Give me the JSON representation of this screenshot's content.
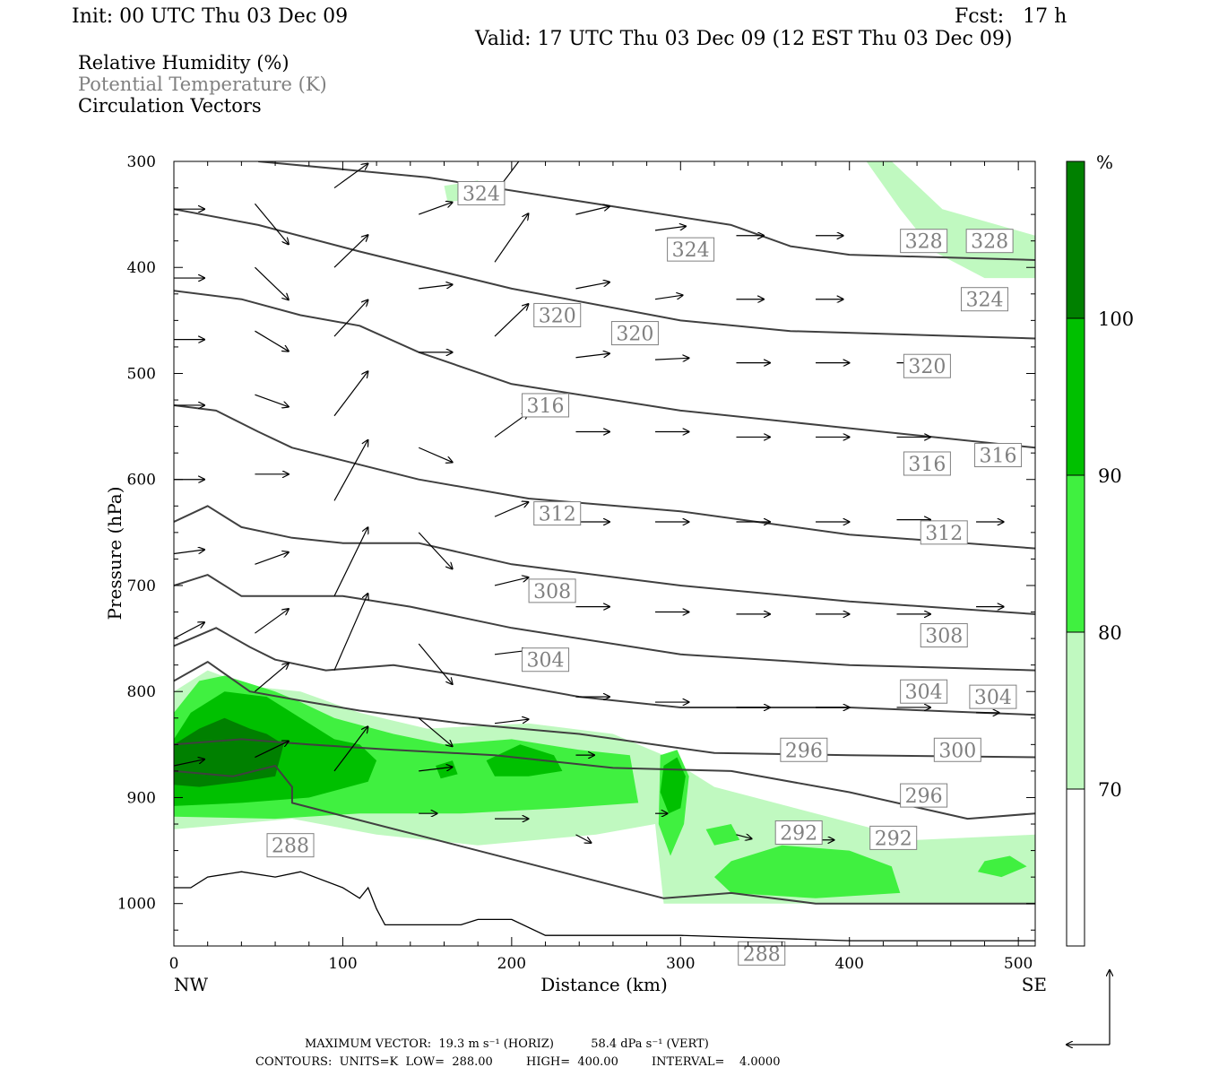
{
  "header": {
    "init": "Init: 00 UTC Thu 03 Dec 09",
    "fcst": "Fcst:   17 h",
    "valid": "Valid: 17 UTC Thu 03 Dec 09 (12 EST Thu 03 Dec 09)"
  },
  "titles": {
    "rh": "Relative Humidity (%)",
    "theta": "Potential Temperature (K)",
    "vectors": "Circulation Vectors"
  },
  "footer": {
    "max_vector": "MAXIMUM VECTOR:  19.3 m s⁻¹ (HORIZ)          58.4 dPa s⁻¹ (VERT)",
    "contours": "CONTOURS:  UNITS=K  LOW=  288.00         HIGH=  400.00         INTERVAL=    4.0000"
  },
  "colors": {
    "rh70": "#c0f9c0",
    "rh80": "#40f040",
    "rh90": "#00c000",
    "rh100": "#008000",
    "contour": "#404040",
    "theta_label": "#808080"
  },
  "chart_data": {
    "type": "cross-section",
    "xlabel": "Distance (km)",
    "ylabel": "Pressure (hPa)",
    "xlim": [
      0,
      510
    ],
    "ylim": [
      1040,
      300
    ],
    "x_ticks": [
      0,
      100,
      200,
      300,
      400,
      500
    ],
    "y_ticks": [
      300,
      400,
      500,
      600,
      700,
      800,
      900,
      1000
    ],
    "x_end_labels": {
      "left": "NW",
      "right": "SE"
    },
    "colorbar": {
      "unit": "%",
      "levels": [
        70,
        80,
        90,
        100
      ],
      "colors": [
        "#ffffff",
        "#c0f9c0",
        "#40f040",
        "#00c000",
        "#008000"
      ]
    },
    "theta_contours": [
      {
        "value": 324,
        "points": [
          [
            50,
            300
          ],
          [
            150,
            315
          ],
          [
            250,
            340
          ],
          [
            330,
            360
          ],
          [
            365,
            380
          ],
          [
            400,
            388
          ],
          [
            510,
            393
          ]
        ]
      },
      {
        "value": 320,
        "points": [
          [
            0,
            345
          ],
          [
            50,
            360
          ],
          [
            110,
            385
          ],
          [
            200,
            420
          ],
          [
            300,
            450
          ],
          [
            365,
            460
          ],
          [
            510,
            467
          ]
        ]
      },
      {
        "value": 316,
        "points": [
          [
            0,
            422
          ],
          [
            40,
            430
          ],
          [
            75,
            445
          ],
          [
            110,
            455
          ],
          [
            145,
            480
          ],
          [
            200,
            510
          ],
          [
            300,
            535
          ],
          [
            390,
            550
          ],
          [
            510,
            570
          ]
        ]
      },
      {
        "value": 312,
        "points": [
          [
            0,
            530
          ],
          [
            25,
            535
          ],
          [
            50,
            555
          ],
          [
            70,
            570
          ],
          [
            95,
            580
          ],
          [
            145,
            600
          ],
          [
            210,
            618
          ],
          [
            300,
            630
          ],
          [
            400,
            652
          ],
          [
            510,
            665
          ]
        ]
      },
      {
        "value": 308,
        "points": [
          [
            0,
            640
          ],
          [
            20,
            625
          ],
          [
            40,
            645
          ],
          [
            70,
            655
          ],
          [
            100,
            660
          ],
          [
            145,
            660
          ],
          [
            200,
            680
          ],
          [
            300,
            700
          ],
          [
            400,
            715
          ],
          [
            510,
            727
          ]
        ]
      },
      {
        "value": 304,
        "points": [
          [
            0,
            700
          ],
          [
            20,
            690
          ],
          [
            40,
            710
          ],
          [
            70,
            710
          ],
          [
            100,
            710
          ],
          [
            140,
            720
          ],
          [
            200,
            740
          ],
          [
            300,
            765
          ],
          [
            400,
            775
          ],
          [
            510,
            780
          ]
        ]
      },
      {
        "value": 300,
        "points": [
          [
            0,
            757
          ],
          [
            25,
            740
          ],
          [
            45,
            758
          ],
          [
            60,
            770
          ],
          [
            90,
            780
          ],
          [
            130,
            775
          ],
          [
            170,
            785
          ],
          [
            240,
            805
          ],
          [
            300,
            815
          ],
          [
            400,
            815
          ],
          [
            510,
            822
          ]
        ]
      },
      {
        "value": 296,
        "points": [
          [
            0,
            790
          ],
          [
            20,
            772
          ],
          [
            45,
            800
          ],
          [
            80,
            810
          ],
          [
            110,
            818
          ],
          [
            170,
            830
          ],
          [
            240,
            840
          ],
          [
            320,
            858
          ],
          [
            400,
            860
          ],
          [
            510,
            862
          ]
        ]
      },
      {
        "value": 292,
        "points": [
          [
            0,
            850
          ],
          [
            40,
            845
          ],
          [
            80,
            850
          ],
          [
            130,
            855
          ],
          [
            190,
            860
          ],
          [
            260,
            872
          ],
          [
            330,
            875
          ],
          [
            400,
            895
          ],
          [
            470,
            920
          ],
          [
            510,
            915
          ]
        ]
      },
      {
        "value": 288,
        "points": [
          [
            0,
            875
          ],
          [
            35,
            880
          ],
          [
            60,
            870
          ],
          [
            70,
            890
          ],
          [
            70,
            905
          ],
          [
            290,
            995
          ],
          [
            330,
            990
          ],
          [
            380,
            1000
          ],
          [
            510,
            1000
          ]
        ]
      }
    ],
    "theta_labels": [
      {
        "value": 324,
        "x": 182,
        "p": 330
      },
      {
        "value": 324,
        "x": 306,
        "p": 383
      },
      {
        "value": 328,
        "x": 444,
        "p": 375
      },
      {
        "value": 328,
        "x": 483,
        "p": 375
      },
      {
        "value": 324,
        "x": 480,
        "p": 430
      },
      {
        "value": 320,
        "x": 227,
        "p": 445
      },
      {
        "value": 320,
        "x": 273,
        "p": 462
      },
      {
        "value": 320,
        "x": 446,
        "p": 493
      },
      {
        "value": 316,
        "x": 220,
        "p": 530
      },
      {
        "value": 316,
        "x": 446,
        "p": 585
      },
      {
        "value": 316,
        "x": 488,
        "p": 577
      },
      {
        "value": 312,
        "x": 227,
        "p": 632
      },
      {
        "value": 312,
        "x": 456,
        "p": 650
      },
      {
        "value": 308,
        "x": 224,
        "p": 705
      },
      {
        "value": 308,
        "x": 456,
        "p": 747
      },
      {
        "value": 304,
        "x": 220,
        "p": 770
      },
      {
        "value": 304,
        "x": 444,
        "p": 800
      },
      {
        "value": 304,
        "x": 485,
        "p": 805
      },
      {
        "value": 300,
        "x": 464,
        "p": 855
      },
      {
        "value": 296,
        "x": 373,
        "p": 855
      },
      {
        "value": 296,
        "x": 444,
        "p": 898
      },
      {
        "value": 292,
        "x": 370,
        "p": 933
      },
      {
        "value": 292,
        "x": 426,
        "p": 938
      },
      {
        "value": 288,
        "x": 69,
        "p": 945
      },
      {
        "value": 288,
        "x": 348,
        "p": 1047
      }
    ],
    "terrain": [
      [
        0,
        985
      ],
      [
        10,
        985
      ],
      [
        20,
        975
      ],
      [
        40,
        970
      ],
      [
        60,
        975
      ],
      [
        75,
        970
      ],
      [
        100,
        985
      ],
      [
        110,
        995
      ],
      [
        115,
        985
      ],
      [
        120,
        1005
      ],
      [
        125,
        1020
      ],
      [
        150,
        1020
      ],
      [
        170,
        1020
      ],
      [
        180,
        1015
      ],
      [
        200,
        1015
      ],
      [
        220,
        1030
      ],
      [
        280,
        1030
      ],
      [
        300,
        1030
      ],
      [
        400,
        1035
      ],
      [
        510,
        1035
      ]
    ],
    "vectors": [
      {
        "x": 0,
        "p": 345,
        "u": 20,
        "w": 0
      },
      {
        "x": 0,
        "p": 410,
        "u": 20,
        "w": 0
      },
      {
        "x": 0,
        "p": 468,
        "u": 20,
        "w": 0
      },
      {
        "x": 0,
        "p": 530,
        "u": 20,
        "w": 0
      },
      {
        "x": 0,
        "p": 600,
        "u": 20,
        "w": 0
      },
      {
        "x": 0,
        "p": 670,
        "u": 20,
        "w": -5
      },
      {
        "x": 0,
        "p": 750,
        "u": 20,
        "w": -20
      },
      {
        "x": 0,
        "p": 870,
        "u": 20,
        "w": -8
      },
      {
        "x": 48,
        "p": 340,
        "u": 22,
        "w": 50
      },
      {
        "x": 48,
        "p": 400,
        "u": 22,
        "w": 40
      },
      {
        "x": 48,
        "p": 460,
        "u": 22,
        "w": 25
      },
      {
        "x": 48,
        "p": 520,
        "u": 22,
        "w": 15
      },
      {
        "x": 48,
        "p": 595,
        "u": 22,
        "w": 0
      },
      {
        "x": 48,
        "p": 680,
        "u": 22,
        "w": -15
      },
      {
        "x": 48,
        "p": 745,
        "u": 22,
        "w": -30
      },
      {
        "x": 48,
        "p": 800,
        "u": 22,
        "w": -35
      },
      {
        "x": 48,
        "p": 862,
        "u": 22,
        "w": -20
      },
      {
        "x": 95,
        "p": 325,
        "u": 22,
        "w": -30
      },
      {
        "x": 95,
        "p": 400,
        "u": 22,
        "w": -40
      },
      {
        "x": 95,
        "p": 465,
        "u": 22,
        "w": -45
      },
      {
        "x": 95,
        "p": 540,
        "u": 22,
        "w": -55
      },
      {
        "x": 95,
        "p": 620,
        "u": 22,
        "w": -75
      },
      {
        "x": 95,
        "p": 710,
        "u": 22,
        "w": -85
      },
      {
        "x": 95,
        "p": 780,
        "u": 22,
        "w": -95
      },
      {
        "x": 95,
        "p": 875,
        "u": 22,
        "w": -55
      },
      {
        "x": 145,
        "p": 350,
        "u": 22,
        "w": -15
      },
      {
        "x": 145,
        "p": 420,
        "u": 22,
        "w": -5
      },
      {
        "x": 145,
        "p": 480,
        "u": 22,
        "w": 0
      },
      {
        "x": 145,
        "p": 570,
        "u": 22,
        "w": 18
      },
      {
        "x": 145,
        "p": 650,
        "u": 22,
        "w": 45
      },
      {
        "x": 145,
        "p": 755,
        "u": 22,
        "w": 50
      },
      {
        "x": 145,
        "p": 825,
        "u": 22,
        "w": 35
      },
      {
        "x": 145,
        "p": 875,
        "u": 22,
        "w": -5
      },
      {
        "x": 145,
        "p": 915,
        "u": 12,
        "w": 0
      },
      {
        "x": 190,
        "p": 330,
        "u": 22,
        "w": -55
      },
      {
        "x": 190,
        "p": 395,
        "u": 22,
        "w": -60
      },
      {
        "x": 190,
        "p": 465,
        "u": 22,
        "w": -40
      },
      {
        "x": 190,
        "p": 560,
        "u": 22,
        "w": -30
      },
      {
        "x": 190,
        "p": 635,
        "u": 22,
        "w": -18
      },
      {
        "x": 190,
        "p": 700,
        "u": 22,
        "w": -10
      },
      {
        "x": 190,
        "p": 765,
        "u": 22,
        "w": -5
      },
      {
        "x": 190,
        "p": 830,
        "u": 22,
        "w": -5
      },
      {
        "x": 190,
        "p": 920,
        "u": 22,
        "w": 0
      },
      {
        "x": 238,
        "p": 350,
        "u": 22,
        "w": -10
      },
      {
        "x": 238,
        "p": 420,
        "u": 22,
        "w": -8
      },
      {
        "x": 238,
        "p": 485,
        "u": 22,
        "w": -5
      },
      {
        "x": 238,
        "p": 555,
        "u": 22,
        "w": 0
      },
      {
        "x": 238,
        "p": 640,
        "u": 22,
        "w": 0
      },
      {
        "x": 238,
        "p": 720,
        "u": 22,
        "w": 0
      },
      {
        "x": 238,
        "p": 805,
        "u": 22,
        "w": 0
      },
      {
        "x": 238,
        "p": 860,
        "u": 12,
        "w": 0
      },
      {
        "x": 238,
        "p": 935,
        "u": 10,
        "w": 10
      },
      {
        "x": 285,
        "p": 365,
        "u": 20,
        "w": -5
      },
      {
        "x": 285,
        "p": 430,
        "u": 18,
        "w": -5
      },
      {
        "x": 285,
        "p": 487,
        "u": 22,
        "w": -2
      },
      {
        "x": 285,
        "p": 555,
        "u": 22,
        "w": 0
      },
      {
        "x": 285,
        "p": 640,
        "u": 22,
        "w": 0
      },
      {
        "x": 285,
        "p": 725,
        "u": 22,
        "w": 0
      },
      {
        "x": 285,
        "p": 810,
        "u": 22,
        "w": 0
      },
      {
        "x": 285,
        "p": 915,
        "u": 8,
        "w": 0
      },
      {
        "x": 333,
        "p": 370,
        "u": 18,
        "w": 0
      },
      {
        "x": 333,
        "p": 430,
        "u": 18,
        "w": 0
      },
      {
        "x": 333,
        "p": 490,
        "u": 22,
        "w": 0
      },
      {
        "x": 333,
        "p": 560,
        "u": 22,
        "w": 0
      },
      {
        "x": 333,
        "p": 640,
        "u": 22,
        "w": 0
      },
      {
        "x": 333,
        "p": 727,
        "u": 22,
        "w": 0
      },
      {
        "x": 333,
        "p": 815,
        "u": 22,
        "w": 0
      },
      {
        "x": 333,
        "p": 935,
        "u": 10,
        "w": 5
      },
      {
        "x": 380,
        "p": 370,
        "u": 18,
        "w": 0
      },
      {
        "x": 380,
        "p": 430,
        "u": 18,
        "w": 0
      },
      {
        "x": 380,
        "p": 490,
        "u": 22,
        "w": 0
      },
      {
        "x": 380,
        "p": 560,
        "u": 22,
        "w": 0
      },
      {
        "x": 380,
        "p": 640,
        "u": 22,
        "w": 0
      },
      {
        "x": 380,
        "p": 727,
        "u": 22,
        "w": 0
      },
      {
        "x": 380,
        "p": 815,
        "u": 22,
        "w": 0
      },
      {
        "x": 380,
        "p": 940,
        "u": 12,
        "w": 0
      },
      {
        "x": 428,
        "p": 490,
        "u": 22,
        "w": 0
      },
      {
        "x": 428,
        "p": 560,
        "u": 22,
        "w": 0
      },
      {
        "x": 428,
        "p": 638,
        "u": 22,
        "w": 0
      },
      {
        "x": 428,
        "p": 727,
        "u": 22,
        "w": 0
      },
      {
        "x": 428,
        "p": 815,
        "u": 22,
        "w": 0
      },
      {
        "x": 428,
        "p": 940,
        "u": 12,
        "w": 0
      },
      {
        "x": 475,
        "p": 640,
        "u": 18,
        "w": 0
      },
      {
        "x": 475,
        "p": 720,
        "u": 18,
        "w": 0
      },
      {
        "x": 475,
        "p": 820,
        "u": 15,
        "w": 0
      }
    ]
  }
}
